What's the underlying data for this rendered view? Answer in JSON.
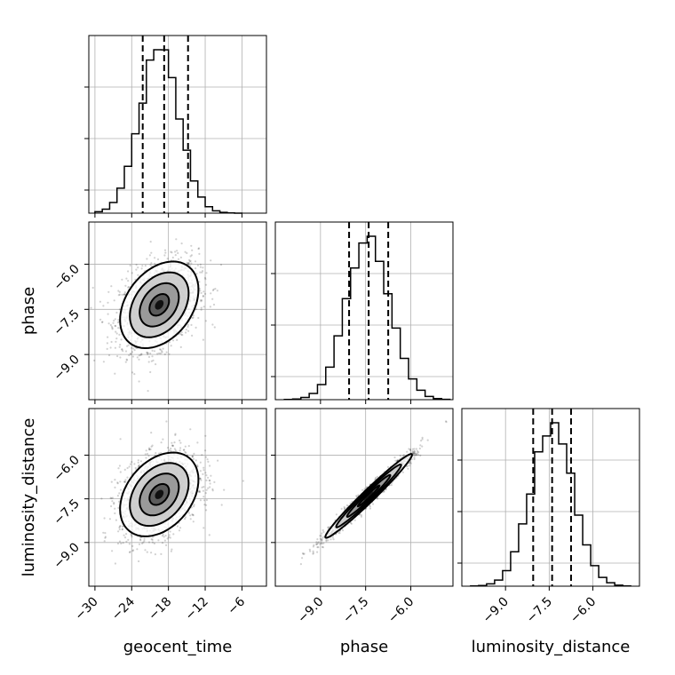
{
  "chart_data": {
    "type": "corner",
    "parameters": [
      {
        "name": "geocent_time",
        "label": "geocent_time",
        "ticks": [
          -30,
          -24,
          -18,
          -12,
          -6
        ],
        "range": [
          -31,
          -2
        ],
        "hist_edges_range": [
          -30,
          -6
        ],
        "hist_mean": -19.5,
        "hist_sigma": 3.2,
        "quantiles": [
          -22.2,
          -18.7,
          -14.8
        ]
      },
      {
        "name": "phase",
        "label": "phase",
        "ticks": [
          -9.0,
          -7.5,
          -6.0
        ],
        "range": [
          -10.5,
          -4.6
        ],
        "hist_edges_range": [
          -10.2,
          -4.7
        ],
        "hist_mean": -7.4,
        "hist_sigma": 0.72,
        "quantiles": [
          -8.05,
          -7.4,
          -6.75
        ]
      },
      {
        "name": "luminosity_distance",
        "label": "luminosity_distance",
        "ticks": [
          -9.0,
          -7.5,
          -6.0
        ],
        "range": [
          -10.5,
          -4.4
        ],
        "hist_edges_range": [
          -10.2,
          -4.7
        ],
        "hist_mean": -7.4,
        "hist_sigma": 0.72,
        "quantiles": [
          -8.05,
          -7.4,
          -6.75
        ]
      }
    ],
    "pairs": [
      {
        "x": "geocent_time",
        "y": "phase",
        "mean_x": -19.5,
        "mean_y": -7.35,
        "sigma_x": 3.2,
        "sigma_y": 0.72,
        "correlation": 0.35
      },
      {
        "x": "geocent_time",
        "y": "luminosity_distance",
        "mean_x": -19.5,
        "mean_y": -7.35,
        "sigma_x": 3.2,
        "sigma_y": 0.72,
        "correlation": 0.35
      },
      {
        "x": "phase",
        "y": "luminosity_distance",
        "mean_x": -7.4,
        "mean_y": -7.4,
        "sigma_x": 0.72,
        "sigma_y": 0.72,
        "correlation": 0.98
      }
    ],
    "contour_levels_sigma": [
      0.5,
      1.0,
      1.5,
      2.0
    ],
    "grid": true
  }
}
